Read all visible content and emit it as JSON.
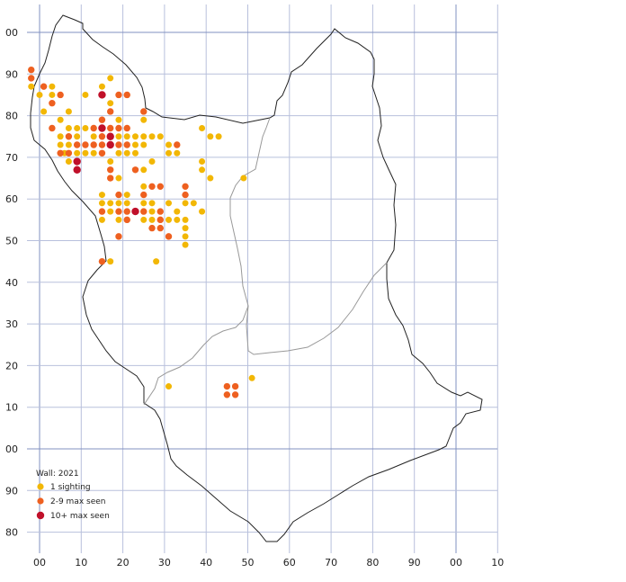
{
  "legend": {
    "title": "Wall:  2021",
    "items": [
      {
        "label": "1 sighting",
        "color": "#f2b705"
      },
      {
        "label": "2-9 max seen",
        "color": "#ee6020"
      },
      {
        "label": "10+ max seen",
        "color": "#c0102a"
      }
    ]
  },
  "y_labels": [
    "00",
    "90",
    "80",
    "70",
    "60",
    "50",
    "40",
    "30",
    "20",
    "10",
    "00",
    "90",
    "80"
  ],
  "x_labels": [
    "00",
    "10",
    "20",
    "30",
    "40",
    "50",
    "60",
    "70",
    "80",
    "90",
    "00",
    "10"
  ],
  "grid_color": "#b8c0dc",
  "major_grid_color": "#8090c0",
  "outline_color": "#222222",
  "boundary_color": "#999999",
  "sightings": {
    "one": [
      [
        -2,
        87
      ],
      [
        0,
        85
      ],
      [
        1,
        81
      ],
      [
        3,
        85
      ],
      [
        3,
        87
      ],
      [
        5,
        79
      ],
      [
        5,
        73
      ],
      [
        5,
        75
      ],
      [
        6,
        71
      ],
      [
        7,
        81
      ],
      [
        7,
        77
      ],
      [
        7,
        73
      ],
      [
        7,
        69
      ],
      [
        9,
        77
      ],
      [
        9,
        75
      ],
      [
        9,
        71
      ],
      [
        9,
        73
      ],
      [
        11,
        77
      ],
      [
        11,
        85
      ],
      [
        11,
        71
      ],
      [
        13,
        71
      ],
      [
        13,
        75
      ],
      [
        13,
        73
      ],
      [
        15,
        87
      ],
      [
        15,
        71
      ],
      [
        15,
        61
      ],
      [
        15,
        59
      ],
      [
        15,
        55
      ],
      [
        17,
        89
      ],
      [
        17,
        83
      ],
      [
        17,
        69
      ],
      [
        17,
        59
      ],
      [
        17,
        57
      ],
      [
        17,
        45
      ],
      [
        19,
        79
      ],
      [
        19,
        75
      ],
      [
        19,
        71
      ],
      [
        19,
        65
      ],
      [
        19,
        59
      ],
      [
        19,
        55
      ],
      [
        21,
        85
      ],
      [
        21,
        75
      ],
      [
        21,
        71
      ],
      [
        21,
        61
      ],
      [
        21,
        59
      ],
      [
        23,
        75
      ],
      [
        23,
        71
      ],
      [
        23,
        73
      ],
      [
        25,
        79
      ],
      [
        25,
        75
      ],
      [
        25,
        73
      ],
      [
        25,
        67
      ],
      [
        25,
        63
      ],
      [
        25,
        59
      ],
      [
        25,
        57
      ],
      [
        25,
        55
      ],
      [
        27,
        75
      ],
      [
        27,
        69
      ],
      [
        27,
        59
      ],
      [
        27,
        57
      ],
      [
        27,
        55
      ],
      [
        28,
        45
      ],
      [
        29,
        75
      ],
      [
        31,
        71
      ],
      [
        31,
        73
      ],
      [
        31,
        59
      ],
      [
        31,
        55
      ],
      [
        33,
        71
      ],
      [
        33,
        57
      ],
      [
        33,
        55
      ],
      [
        35,
        59
      ],
      [
        35,
        55
      ],
      [
        35,
        53
      ],
      [
        35,
        51
      ],
      [
        35,
        49
      ],
      [
        37,
        59
      ],
      [
        39,
        77
      ],
      [
        39,
        69
      ],
      [
        39,
        67
      ],
      [
        39,
        57
      ],
      [
        41,
        75
      ],
      [
        41,
        65
      ],
      [
        43,
        75
      ],
      [
        49,
        65
      ],
      [
        31,
        15
      ],
      [
        51,
        17
      ]
    ],
    "two_nine": [
      [
        -2,
        91
      ],
      [
        -2,
        89
      ],
      [
        1,
        87
      ],
      [
        3,
        83
      ],
      [
        3,
        77
      ],
      [
        5,
        85
      ],
      [
        5,
        71
      ],
      [
        7,
        75
      ],
      [
        7,
        71
      ],
      [
        9,
        73
      ],
      [
        9,
        69
      ],
      [
        11,
        73
      ],
      [
        13,
        77
      ],
      [
        13,
        73
      ],
      [
        15,
        79
      ],
      [
        15,
        75
      ],
      [
        15,
        73
      ],
      [
        15,
        71
      ],
      [
        15,
        57
      ],
      [
        15,
        45
      ],
      [
        17,
        81
      ],
      [
        17,
        77
      ],
      [
        17,
        75
      ],
      [
        17,
        67
      ],
      [
        17,
        65
      ],
      [
        19,
        85
      ],
      [
        19,
        77
      ],
      [
        19,
        73
      ],
      [
        19,
        61
      ],
      [
        19,
        57
      ],
      [
        19,
        51
      ],
      [
        21,
        85
      ],
      [
        21,
        77
      ],
      [
        21,
        73
      ],
      [
        21,
        57
      ],
      [
        21,
        55
      ],
      [
        23,
        67
      ],
      [
        25,
        81
      ],
      [
        25,
        61
      ],
      [
        25,
        57
      ],
      [
        27,
        63
      ],
      [
        27,
        53
      ],
      [
        29,
        63
      ],
      [
        29,
        57
      ],
      [
        29,
        55
      ],
      [
        29,
        53
      ],
      [
        31,
        51
      ],
      [
        33,
        73
      ],
      [
        35,
        63
      ],
      [
        35,
        61
      ],
      [
        45,
        15
      ],
      [
        45,
        13
      ],
      [
        47,
        15
      ],
      [
        47,
        13
      ]
    ],
    "ten_plus": [
      [
        15,
        85
      ],
      [
        15,
        77
      ],
      [
        17,
        75
      ],
      [
        17,
        73
      ],
      [
        9,
        69
      ],
      [
        9,
        67
      ],
      [
        23,
        57
      ]
    ]
  }
}
